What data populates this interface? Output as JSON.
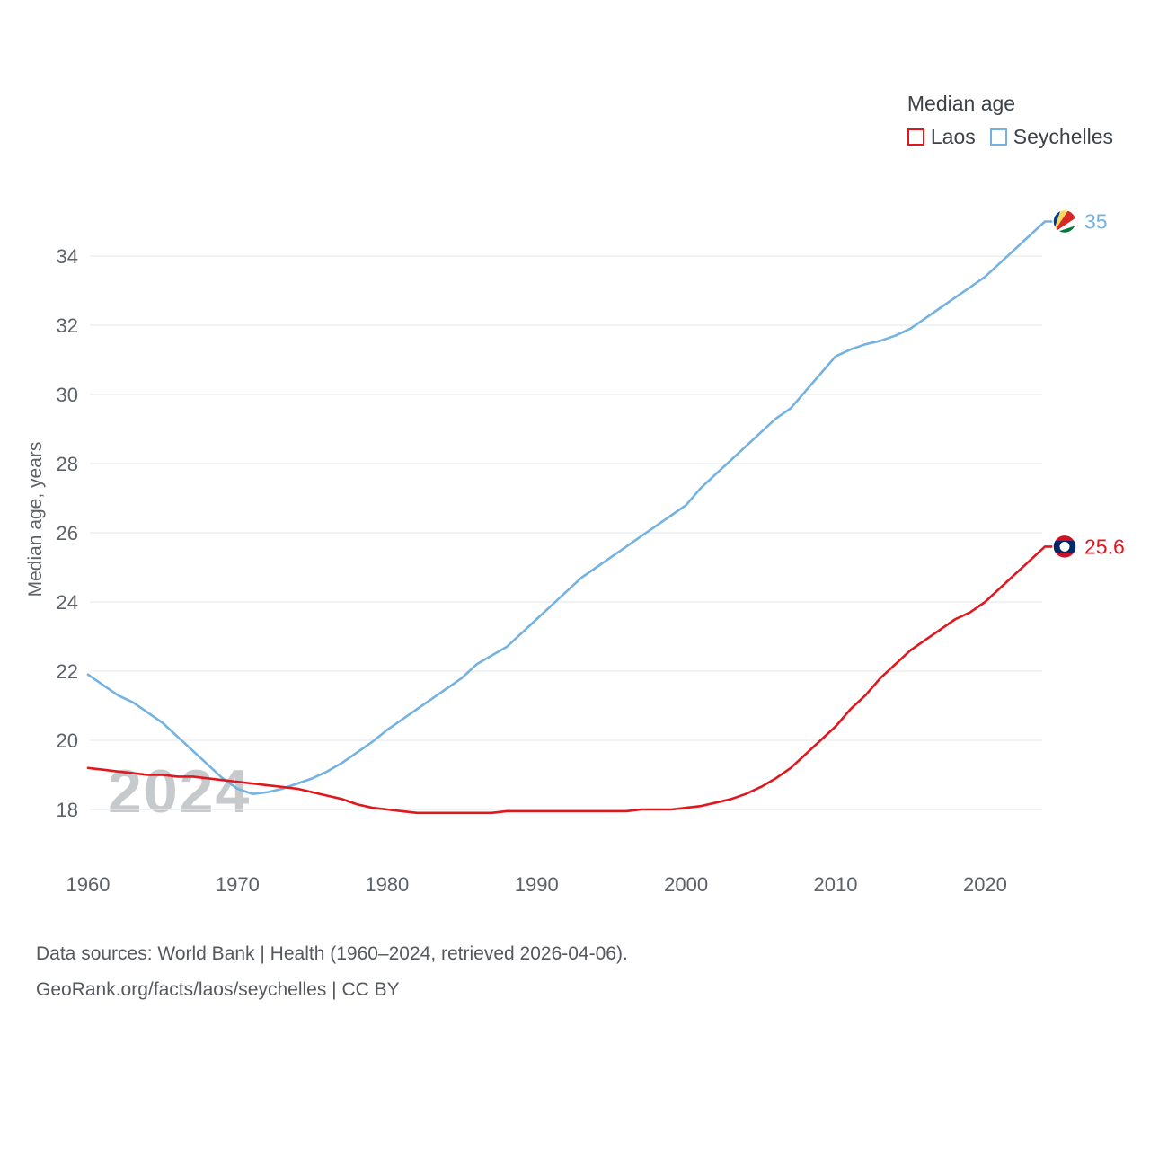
{
  "legend": {
    "title": "Median age",
    "items": [
      {
        "label": "Laos",
        "color": "#e0181e"
      },
      {
        "label": "Seychelles",
        "color": "#74b2e2"
      }
    ]
  },
  "chart_data": {
    "type": "line",
    "title": "Median age",
    "ylabel": "Median age, years",
    "xlabel": "",
    "watermark": "2024",
    "grid": "horizontal",
    "legend_position": "top-right",
    "x_ticks": [
      1960,
      1970,
      1980,
      1990,
      2000,
      2010,
      2020
    ],
    "y_ticks": [
      18,
      20,
      22,
      24,
      26,
      28,
      30,
      32,
      34
    ],
    "xlim": [
      1960,
      2024
    ],
    "ylim": [
      17,
      35.5
    ],
    "x": [
      1960,
      1961,
      1962,
      1963,
      1964,
      1965,
      1966,
      1967,
      1968,
      1969,
      1970,
      1971,
      1972,
      1973,
      1974,
      1975,
      1976,
      1977,
      1978,
      1979,
      1980,
      1981,
      1982,
      1983,
      1984,
      1985,
      1986,
      1987,
      1988,
      1989,
      1990,
      1991,
      1992,
      1993,
      1994,
      1995,
      1996,
      1997,
      1998,
      1999,
      2000,
      2001,
      2002,
      2003,
      2004,
      2005,
      2006,
      2007,
      2008,
      2009,
      2010,
      2011,
      2012,
      2013,
      2014,
      2015,
      2016,
      2017,
      2018,
      2019,
      2020,
      2021,
      2022,
      2023,
      2024
    ],
    "series": [
      {
        "name": "Laos",
        "color": "#e0181e",
        "end_label": "25.6",
        "flag": {
          "name": "laos-flag-icon",
          "colors": [
            "#ce1126",
            "#002868",
            "#ffffff"
          ]
        },
        "values": [
          19.2,
          19.15,
          19.1,
          19.05,
          19.0,
          19.0,
          18.95,
          18.95,
          18.9,
          18.85,
          18.8,
          18.75,
          18.7,
          18.65,
          18.6,
          18.5,
          18.4,
          18.3,
          18.15,
          18.05,
          18.0,
          17.95,
          17.9,
          17.9,
          17.9,
          17.9,
          17.9,
          17.9,
          17.95,
          17.95,
          17.95,
          17.95,
          17.95,
          17.95,
          17.95,
          17.95,
          17.95,
          18.0,
          18.0,
          18.0,
          18.05,
          18.1,
          18.2,
          18.3,
          18.45,
          18.65,
          18.9,
          19.2,
          19.6,
          20.0,
          20.4,
          20.9,
          21.3,
          21.8,
          22.2,
          22.6,
          22.9,
          23.2,
          23.5,
          23.7,
          24.0,
          24.4,
          24.8,
          25.2,
          25.6
        ]
      },
      {
        "name": "Seychelles",
        "color": "#74b2e2",
        "end_label": "35",
        "flag": {
          "name": "seychelles-flag-icon",
          "colors": [
            "#003f87",
            "#fcd856",
            "#d62828",
            "#ffffff",
            "#007a3d"
          ]
        },
        "values": [
          21.9,
          21.6,
          21.3,
          21.1,
          20.8,
          20.5,
          20.1,
          19.7,
          19.3,
          18.9,
          18.6,
          18.45,
          18.5,
          18.6,
          18.75,
          18.9,
          19.1,
          19.35,
          19.65,
          19.95,
          20.3,
          20.6,
          20.9,
          21.2,
          21.5,
          21.8,
          22.2,
          22.45,
          22.7,
          23.1,
          23.5,
          23.9,
          24.3,
          24.7,
          25.0,
          25.3,
          25.6,
          25.9,
          26.2,
          26.5,
          26.8,
          27.3,
          27.7,
          28.1,
          28.5,
          28.9,
          29.3,
          29.6,
          30.1,
          30.6,
          31.1,
          31.3,
          31.45,
          31.55,
          31.7,
          31.9,
          32.2,
          32.5,
          32.8,
          33.1,
          33.4,
          33.8,
          34.2,
          34.6,
          35.0
        ]
      }
    ]
  },
  "footer": {
    "line1": "Data sources: World Bank | Health (1960–2024, retrieved 2026-04-06).",
    "line2": "GeoRank.org/facts/laos/seychelles | CC BY"
  }
}
